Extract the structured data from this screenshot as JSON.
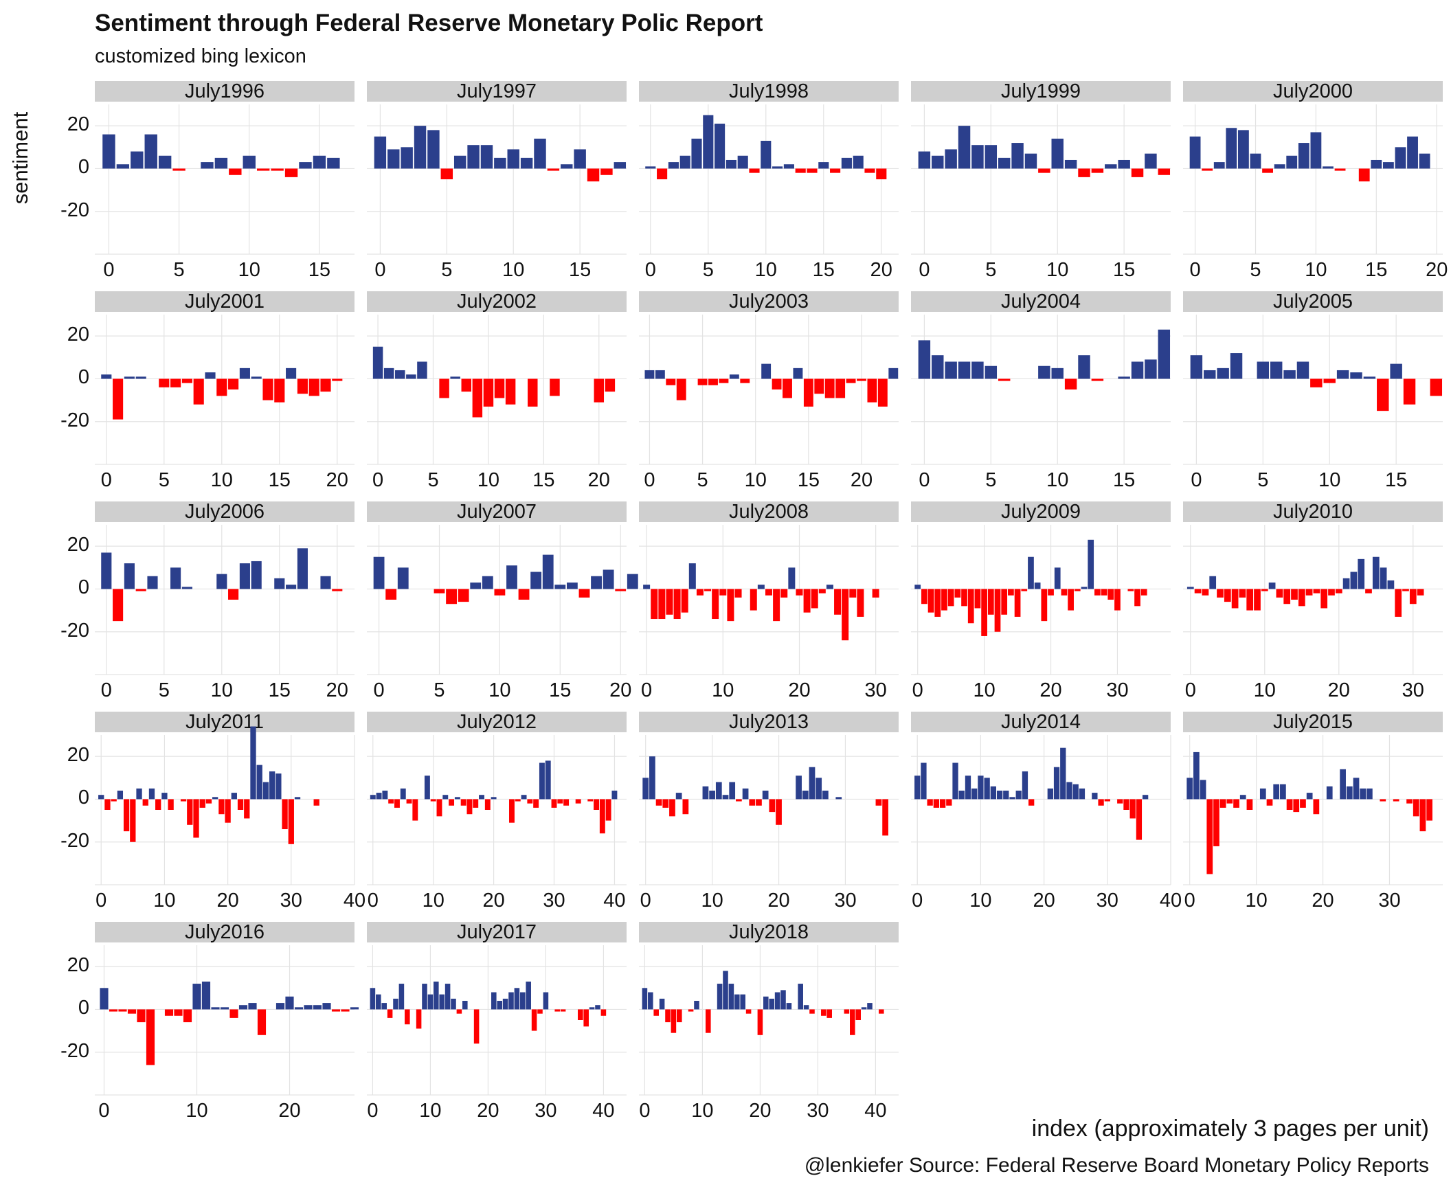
{
  "title": "Sentiment through Federal Reserve Monetary Polic Report",
  "subtitle": "customized bing lexicon",
  "ylabel": "sentiment",
  "xlabel": "index (approximately 3 pages per unit)",
  "caption": "@lenkiefer Source: Federal Reserve Board Monetary Policy Reports",
  "colors": {
    "positive": "#2b3f8c",
    "negative": "#ff0000",
    "strip": "#cfcfcf",
    "grid": "#e3e3e3"
  },
  "chart_data": {
    "type": "bar",
    "facet_by": "report",
    "ylim": [
      -40,
      30
    ],
    "y_ticks": [
      20,
      0,
      -20
    ],
    "grid": true,
    "panels": [
      {
        "label": "July1996",
        "xlim": [
          -1,
          17.5
        ],
        "x_ticks": [
          0,
          5,
          10,
          15
        ],
        "values": [
          16,
          2,
          8,
          16,
          6,
          -1,
          0,
          3,
          5,
          -3,
          6,
          -1,
          -1,
          -4,
          3,
          6,
          5
        ]
      },
      {
        "label": "July1997",
        "xlim": [
          -1,
          18.5
        ],
        "x_ticks": [
          0,
          5,
          10,
          15
        ],
        "values": [
          15,
          9,
          10,
          20,
          18,
          -5,
          6,
          11,
          11,
          5,
          9,
          5,
          14,
          -1,
          2,
          9,
          -6,
          -3,
          3
        ]
      },
      {
        "label": "July1998",
        "xlim": [
          -1,
          21.5
        ],
        "x_ticks": [
          0,
          5,
          10,
          15,
          20
        ],
        "values": [
          1,
          -5,
          3,
          6,
          14,
          25,
          21,
          4,
          6,
          -2,
          13,
          1,
          2,
          -2,
          -2,
          3,
          -2,
          5,
          6,
          -2,
          -5
        ]
      },
      {
        "label": "July1999",
        "xlim": [
          -1,
          18.5
        ],
        "x_ticks": [
          0,
          5,
          10,
          15
        ],
        "values": [
          8,
          6,
          9,
          20,
          11,
          11,
          5,
          12,
          7,
          -2,
          14,
          4,
          -4,
          -2,
          2,
          4,
          -4,
          7,
          -3
        ]
      },
      {
        "label": "July2000",
        "xlim": [
          -1,
          20.5
        ],
        "x_ticks": [
          0,
          5,
          10,
          15,
          20
        ],
        "values": [
          15,
          -1,
          3,
          19,
          18,
          7,
          -2,
          2,
          6,
          12,
          17,
          1,
          -1,
          0,
          -6,
          4,
          3,
          10,
          15,
          7
        ]
      },
      {
        "label": "July2001",
        "xlim": [
          -1,
          21.5
        ],
        "x_ticks": [
          0,
          5,
          10,
          15,
          20
        ],
        "values": [
          2,
          -19,
          1,
          1,
          0,
          -4,
          -4,
          -2,
          -12,
          3,
          -8,
          -5,
          5,
          1,
          -10,
          -11,
          5,
          -7,
          -8,
          -6,
          -1
        ]
      },
      {
        "label": "July2002",
        "xlim": [
          -1,
          22.5
        ],
        "x_ticks": [
          0,
          5,
          10,
          15,
          20
        ],
        "values": [
          15,
          5,
          4,
          2,
          8,
          0,
          -9,
          1,
          -6,
          -18,
          -13,
          -9,
          -12,
          0,
          -13,
          0,
          -8,
          0,
          0,
          0,
          -11,
          -6
        ]
      },
      {
        "label": "July2003",
        "xlim": [
          -1,
          23.5
        ],
        "x_ticks": [
          0,
          5,
          10,
          15,
          20
        ],
        "values": [
          4,
          4,
          -3,
          -10,
          0,
          -3,
          -3,
          -2,
          2,
          -2,
          0,
          7,
          -5,
          -9,
          5,
          -13,
          -7,
          -9,
          -9,
          -2,
          -1,
          -11,
          -13,
          5
        ]
      },
      {
        "label": "July2004",
        "xlim": [
          -1,
          18.5
        ],
        "x_ticks": [
          0,
          5,
          10,
          15
        ],
        "values": [
          18,
          11,
          8,
          8,
          8,
          6,
          -1,
          0,
          0,
          6,
          5,
          -5,
          11,
          -1,
          0,
          1,
          8,
          9,
          23
        ]
      },
      {
        "label": "July2005",
        "xlim": [
          -1,
          18.5
        ],
        "x_ticks": [
          0,
          5,
          10,
          15
        ],
        "values": [
          11,
          4,
          5,
          12,
          0,
          8,
          8,
          4,
          8,
          -4,
          -2,
          4,
          3,
          1,
          -15,
          7,
          -12,
          0,
          -8
        ]
      },
      {
        "label": "July2006",
        "xlim": [
          -1,
          21.5
        ],
        "x_ticks": [
          0,
          5,
          10,
          15,
          20
        ],
        "values": [
          17,
          -15,
          12,
          -1,
          6,
          0,
          10,
          1,
          0,
          0,
          7,
          -5,
          12,
          13,
          0,
          5,
          2,
          19,
          0,
          6,
          -1
        ]
      },
      {
        "label": "July2007",
        "xlim": [
          -1,
          20.5
        ],
        "x_ticks": [
          0,
          5,
          10,
          15,
          20
        ],
        "values": [
          15,
          -5,
          10,
          0,
          0,
          -2,
          -7,
          -6,
          3,
          6,
          -3,
          11,
          -5,
          8,
          16,
          2,
          3,
          -4,
          6,
          9,
          -1,
          7
        ]
      },
      {
        "label": "July2008",
        "xlim": [
          -1,
          33
        ],
        "x_ticks": [
          0,
          10,
          20,
          30
        ],
        "values": [
          2,
          -14,
          -14,
          -12,
          -14,
          -11,
          12,
          -3,
          -1,
          -14,
          -3,
          -15,
          -4,
          0,
          -10,
          2,
          -3,
          -15,
          -4,
          10,
          -3,
          -11,
          -9,
          -2,
          2,
          -12,
          -24,
          -4,
          -13,
          0,
          -4
        ]
      },
      {
        "label": "July2009",
        "xlim": [
          -1,
          38
        ],
        "x_ticks": [
          0,
          10,
          20,
          30
        ],
        "values": [
          2,
          -7,
          -11,
          -13,
          -10,
          -8,
          -4,
          -8,
          -16,
          -9,
          -22,
          -12,
          -20,
          -12,
          -3,
          -13,
          -1,
          15,
          3,
          -15,
          -3,
          10,
          -3,
          -10,
          -1,
          1,
          23,
          -3,
          -3,
          -5,
          -10,
          0,
          -1,
          -8,
          -3
        ]
      },
      {
        "label": "July2010",
        "xlim": [
          -1,
          34
        ],
        "x_ticks": [
          0,
          10,
          20,
          30
        ],
        "values": [
          1,
          -2,
          -3,
          6,
          -4,
          -6,
          -9,
          -4,
          -10,
          -10,
          -1,
          3,
          -4,
          -7,
          -5,
          -8,
          -3,
          -2,
          -9,
          -3,
          -2,
          5,
          8,
          14,
          -2,
          15,
          10,
          4,
          -13,
          -1,
          -7,
          -3
        ]
      },
      {
        "label": "July2011",
        "xlim": [
          -1,
          40
        ],
        "x_ticks": [
          0,
          10,
          20,
          30,
          40
        ],
        "values": [
          2,
          -5,
          -1,
          4,
          -15,
          -20,
          5,
          -3,
          5,
          -5,
          3,
          -5,
          0,
          -1,
          -12,
          -18,
          -4,
          -2,
          1,
          -7,
          -11,
          3,
          -5,
          -9,
          34,
          16,
          8,
          13,
          12,
          -14,
          -21,
          1,
          0,
          0,
          -3
        ]
      },
      {
        "label": "July2012",
        "xlim": [
          -1,
          42
        ],
        "x_ticks": [
          0,
          10,
          20,
          30,
          40
        ],
        "values": [
          2,
          3,
          4,
          -2,
          -4,
          5,
          -2,
          -10,
          0,
          11,
          -1,
          -8,
          2,
          -3,
          1,
          -3,
          -7,
          -4,
          2,
          -5,
          1,
          0,
          0,
          -11,
          -1,
          2,
          -2,
          -4,
          17,
          18,
          -4,
          -2,
          -3,
          0,
          -2,
          0,
          -1,
          -5,
          -16,
          -10,
          4
        ]
      },
      {
        "label": "July2013",
        "xlim": [
          -1,
          38
        ],
        "x_ticks": [
          0,
          10,
          20,
          30
        ],
        "values": [
          10,
          20,
          -3,
          -4,
          -8,
          3,
          -7,
          0,
          0,
          6,
          4,
          8,
          2,
          8,
          -1,
          5,
          -3,
          -3,
          4,
          -6,
          -12,
          0,
          0,
          11,
          4,
          15,
          10,
          4,
          0,
          1,
          0,
          0,
          0,
          0,
          0,
          -3,
          -17
        ]
      },
      {
        "label": "July2014",
        "xlim": [
          -1,
          40
        ],
        "x_ticks": [
          0,
          10,
          20,
          30,
          40
        ],
        "values": [
          11,
          17,
          -3,
          -4,
          -4,
          -3,
          17,
          4,
          11,
          5,
          11,
          10,
          6,
          4,
          4,
          1,
          4,
          13,
          -3,
          0,
          0,
          5,
          15,
          24,
          8,
          7,
          5,
          0,
          3,
          -3,
          -1,
          0,
          -2,
          -5,
          -9,
          -19,
          2
        ]
      },
      {
        "label": "July2015",
        "xlim": [
          -1,
          38
        ],
        "x_ticks": [
          0,
          10,
          20,
          30
        ],
        "values": [
          10,
          22,
          9,
          -35,
          -22,
          -4,
          -2,
          -4,
          2,
          -5,
          0,
          5,
          -3,
          7,
          7,
          -5,
          -6,
          -4,
          3,
          -7,
          0,
          6,
          0,
          14,
          6,
          10,
          5,
          5,
          0,
          -1,
          0,
          -1,
          0,
          -2,
          -8,
          -15,
          -10
        ]
      },
      {
        "label": "July2016",
        "xlim": [
          -1,
          27
        ],
        "x_ticks": [
          0,
          10,
          20
        ],
        "values": [
          10,
          -1,
          -1,
          -2,
          -6,
          -26,
          0,
          -3,
          -3,
          -6,
          12,
          13,
          1,
          1,
          -4,
          2,
          3,
          -12,
          0,
          3,
          6,
          1,
          2,
          2,
          3,
          -1,
          -1,
          1
        ]
      },
      {
        "label": "July2017",
        "xlim": [
          -1,
          44
        ],
        "x_ticks": [
          0,
          10,
          20,
          30,
          40
        ],
        "values": [
          10,
          7,
          3,
          -4,
          5,
          12,
          -7,
          0,
          -9,
          12,
          7,
          13,
          7,
          12,
          5,
          -2,
          4,
          0,
          -16,
          0,
          0,
          8,
          4,
          5,
          8,
          10,
          8,
          13,
          -10,
          -2,
          8,
          0,
          -1,
          -1,
          0,
          0,
          -5,
          -8,
          1,
          2,
          -3
        ]
      },
      {
        "label": "July2018",
        "xlim": [
          -1,
          44
        ],
        "x_ticks": [
          0,
          10,
          20,
          30,
          40
        ],
        "values": [
          10,
          8,
          -3,
          5,
          -6,
          -11,
          -6,
          0,
          -1,
          4,
          0,
          -11,
          0,
          12,
          18,
          12,
          7,
          7,
          -2,
          0,
          -12,
          6,
          5,
          8,
          9,
          3,
          0,
          12,
          2,
          -2,
          0,
          -3,
          -4,
          0,
          0,
          -2,
          -12,
          -5,
          1,
          3,
          0,
          -2
        ]
      }
    ]
  }
}
